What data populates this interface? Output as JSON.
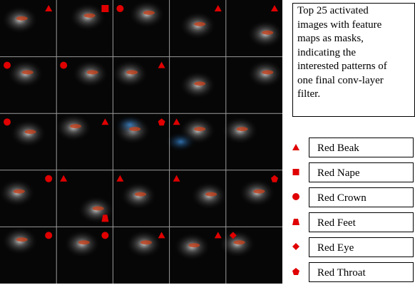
{
  "caption": [
    "Top 25 activated",
    "images with feature",
    "maps as masks,",
    "indicating the",
    "interested patterns of",
    "one final conv-layer",
    "filter."
  ],
  "legend": [
    "Red Beak",
    "Red Nape",
    "Red Crown",
    "Red Feet",
    "Red Eye",
    "Red Throat"
  ]
}
